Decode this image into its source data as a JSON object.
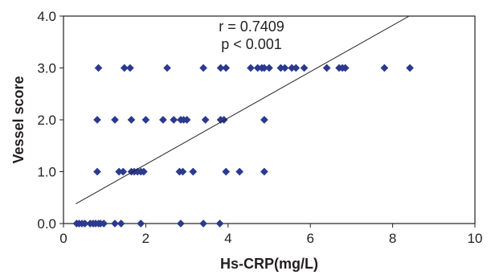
{
  "chart_data": {
    "type": "scatter",
    "title": "",
    "xlabel": "Hs-CRP(mg/L)",
    "ylabel": "Vessel score",
    "xlim": [
      0,
      10
    ],
    "ylim": [
      0,
      4
    ],
    "x_ticks": [
      "0",
      "2",
      "4",
      "6",
      "8",
      "10"
    ],
    "y_ticks": [
      "0.0",
      "1.0",
      "2.0",
      "3.0",
      "4.0"
    ],
    "grid": false,
    "legend": "none",
    "annotations": [
      "r = 0.7409",
      "p < 0.001"
    ],
    "marker_color": "#2b3a8c",
    "trendline": {
      "x": [
        0.3,
        8.4
      ],
      "y": [
        0.38,
        4.0
      ]
    },
    "points": [
      {
        "x": 0.32,
        "y": 0
      },
      {
        "x": 0.38,
        "y": 0
      },
      {
        "x": 0.45,
        "y": 0
      },
      {
        "x": 0.52,
        "y": 0
      },
      {
        "x": 0.65,
        "y": 0
      },
      {
        "x": 0.72,
        "y": 0
      },
      {
        "x": 0.78,
        "y": 0
      },
      {
        "x": 0.85,
        "y": 0
      },
      {
        "x": 0.9,
        "y": 0
      },
      {
        "x": 0.98,
        "y": 0
      },
      {
        "x": 1.25,
        "y": 0
      },
      {
        "x": 1.4,
        "y": 0
      },
      {
        "x": 1.88,
        "y": 0
      },
      {
        "x": 2.85,
        "y": 0
      },
      {
        "x": 3.4,
        "y": 0
      },
      {
        "x": 3.8,
        "y": 0
      },
      {
        "x": 0.82,
        "y": 1
      },
      {
        "x": 1.35,
        "y": 1
      },
      {
        "x": 1.45,
        "y": 1
      },
      {
        "x": 1.65,
        "y": 1
      },
      {
        "x": 1.72,
        "y": 1
      },
      {
        "x": 1.8,
        "y": 1
      },
      {
        "x": 1.88,
        "y": 1
      },
      {
        "x": 1.95,
        "y": 1
      },
      {
        "x": 2.82,
        "y": 1
      },
      {
        "x": 2.9,
        "y": 1
      },
      {
        "x": 3.15,
        "y": 1
      },
      {
        "x": 3.95,
        "y": 1
      },
      {
        "x": 4.28,
        "y": 1
      },
      {
        "x": 4.88,
        "y": 1
      },
      {
        "x": 0.82,
        "y": 2
      },
      {
        "x": 1.25,
        "y": 2
      },
      {
        "x": 1.65,
        "y": 2
      },
      {
        "x": 2.0,
        "y": 2
      },
      {
        "x": 2.42,
        "y": 2
      },
      {
        "x": 2.68,
        "y": 2
      },
      {
        "x": 2.85,
        "y": 2
      },
      {
        "x": 2.92,
        "y": 2
      },
      {
        "x": 3.0,
        "y": 2
      },
      {
        "x": 3.45,
        "y": 2
      },
      {
        "x": 3.82,
        "y": 2
      },
      {
        "x": 3.9,
        "y": 2
      },
      {
        "x": 4.88,
        "y": 2
      },
      {
        "x": 0.85,
        "y": 3
      },
      {
        "x": 1.48,
        "y": 3
      },
      {
        "x": 1.62,
        "y": 3
      },
      {
        "x": 2.52,
        "y": 3
      },
      {
        "x": 3.4,
        "y": 3
      },
      {
        "x": 3.82,
        "y": 3
      },
      {
        "x": 3.95,
        "y": 3
      },
      {
        "x": 4.55,
        "y": 3
      },
      {
        "x": 4.72,
        "y": 3
      },
      {
        "x": 4.82,
        "y": 3
      },
      {
        "x": 4.88,
        "y": 3
      },
      {
        "x": 5.0,
        "y": 3
      },
      {
        "x": 5.28,
        "y": 3
      },
      {
        "x": 5.38,
        "y": 3
      },
      {
        "x": 5.55,
        "y": 3
      },
      {
        "x": 5.65,
        "y": 3
      },
      {
        "x": 5.85,
        "y": 3
      },
      {
        "x": 6.4,
        "y": 3
      },
      {
        "x": 6.7,
        "y": 3
      },
      {
        "x": 6.78,
        "y": 3
      },
      {
        "x": 6.85,
        "y": 3
      },
      {
        "x": 7.8,
        "y": 3
      },
      {
        "x": 8.42,
        "y": 3
      }
    ]
  }
}
